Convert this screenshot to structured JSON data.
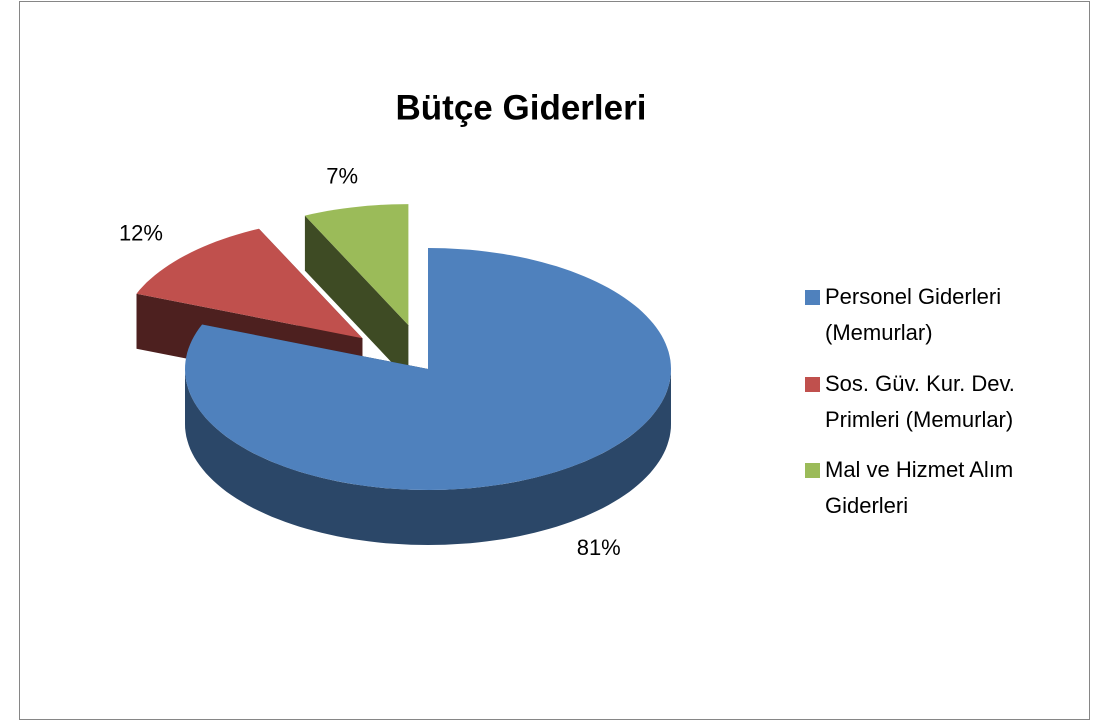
{
  "chart_data": {
    "type": "pie3d",
    "title": "Bütçe Giderleri",
    "categories": [
      "Personel Giderleri (Memurlar)",
      "Sos. Güv. Kur. Dev. Primleri (Memurlar)",
      "Mal ve Hizmet Alım Giderleri"
    ],
    "values": [
      81,
      12,
      7
    ],
    "value_labels": [
      "81%",
      "12%",
      "7%"
    ],
    "colors": [
      "#4f81bd",
      "#c0504d",
      "#9bbb59"
    ],
    "legend": "right"
  }
}
